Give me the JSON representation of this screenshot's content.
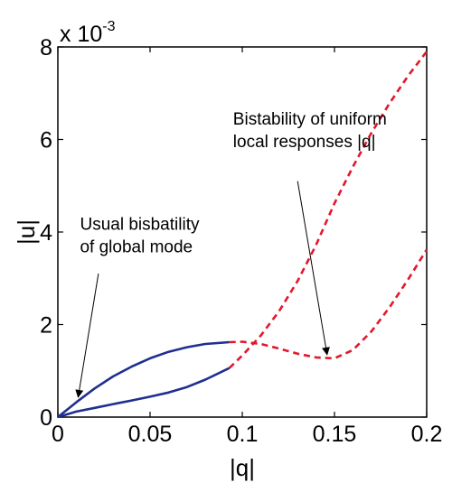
{
  "chart_data": {
    "type": "line",
    "title": "",
    "xlabel": "|q|",
    "ylabel": "|u|",
    "xlim": [
      0,
      0.2
    ],
    "ylim": [
      0,
      0.008
    ],
    "y_exponent_label": "x 10",
    "y_exponent_power": "-3",
    "x_ticks": [
      0,
      0.05,
      0.1,
      0.15,
      0.2
    ],
    "x_tick_labels": [
      "0",
      "0.05",
      "0.1",
      "0.15",
      "0.2"
    ],
    "y_ticks": [
      0,
      0.002,
      0.004,
      0.006,
      0.008
    ],
    "y_tick_labels": [
      "0",
      "2",
      "4",
      "6",
      "8"
    ],
    "grid": false,
    "colors": {
      "stable": "#1f2f8f",
      "unstable": "#e3172b"
    },
    "series": [
      {
        "style": "solid",
        "color": "#1f2f8f",
        "x": [
          0,
          0.01,
          0.02,
          0.03,
          0.04,
          0.05,
          0.06,
          0.07,
          0.08,
          0.093
        ],
        "y": [
          0,
          0.00032,
          0.00062,
          0.00088,
          0.00109,
          0.00127,
          0.00141,
          0.00151,
          0.00158,
          0.00162
        ]
      },
      {
        "style": "solid",
        "color": "#1f2f8f",
        "x": [
          0,
          0.01,
          0.02,
          0.03,
          0.04,
          0.05,
          0.06,
          0.07,
          0.08,
          0.093
        ],
        "y": [
          0,
          0.00012,
          0.0002,
          0.00028,
          0.00036,
          0.00044,
          0.00053,
          0.00065,
          0.00081,
          0.00106
        ]
      },
      {
        "style": "dashed",
        "color": "#e3172b",
        "x": [
          0.093,
          0.1,
          0.11,
          0.12,
          0.13,
          0.14,
          0.15,
          0.16,
          0.17,
          0.18,
          0.19,
          0.2
        ],
        "y": [
          0.00106,
          0.00133,
          0.00176,
          0.00229,
          0.00294,
          0.00372,
          0.00462,
          0.00541,
          0.00614,
          0.00679,
          0.00738,
          0.0079
        ]
      },
      {
        "style": "dashed",
        "color": "#e3172b",
        "x": [
          0.093,
          0.1,
          0.11,
          0.12,
          0.13,
          0.14,
          0.15,
          0.16,
          0.17,
          0.18,
          0.19,
          0.2
        ],
        "y": [
          0.00162,
          0.00163,
          0.00158,
          0.00148,
          0.00137,
          0.00129,
          0.00127,
          0.00145,
          0.00185,
          0.00238,
          0.00298,
          0.00362
        ]
      }
    ],
    "annotations": [
      {
        "lines": [
          "Usual bisbatility",
          "of global mode"
        ],
        "text_at": [
          0.012,
          0.00405
        ],
        "arrow_from": [
          0.022,
          0.0031
        ],
        "arrow_to": [
          0.011,
          0.00043
        ]
      },
      {
        "lines": [
          "Bistability of uniform",
          "local responses |q|"
        ],
        "text_at": [
          0.095,
          0.00632
        ],
        "arrow_from": [
          0.13,
          0.0051
        ],
        "arrow_to": [
          0.146,
          0.00135
        ]
      }
    ]
  }
}
